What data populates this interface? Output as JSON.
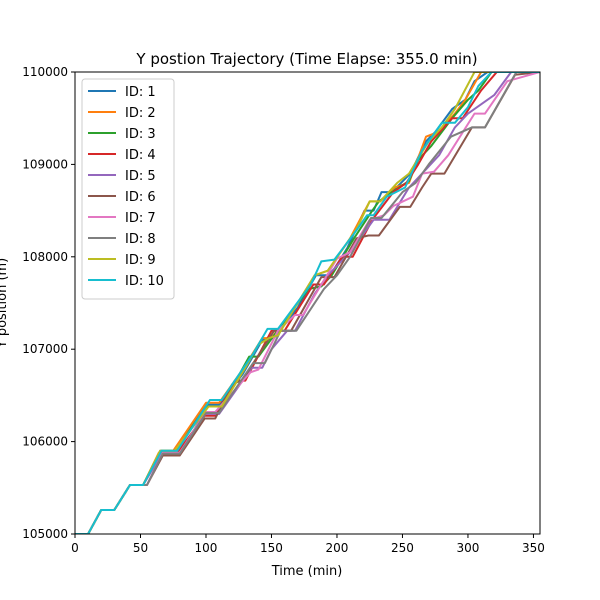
{
  "chart_data": {
    "type": "line",
    "title": "Y postion Trajectory (Time Elapse: 355.0 min)",
    "xlabel": "Time (min)",
    "ylabel": "Y position (m)",
    "xlim": [
      0,
      355
    ],
    "ylim": [
      105000,
      110000
    ],
    "xticks": [
      0,
      50,
      100,
      150,
      200,
      250,
      300,
      350
    ],
    "yticks": [
      105000,
      106000,
      107000,
      108000,
      109000,
      110000
    ],
    "xtick_labels": [
      "0",
      "50",
      "100",
      "150",
      "200",
      "250",
      "300",
      "350"
    ],
    "ytick_labels": [
      "105000",
      "106000",
      "107000",
      "108000",
      "109000",
      "110000"
    ],
    "grid": false,
    "legend": "top-left",
    "series": [
      {
        "name": "ID: 1",
        "color": "#1f77b4",
        "points": [
          [
            0,
            105000
          ],
          [
            10,
            105000
          ],
          [
            20,
            105260
          ],
          [
            30,
            105260
          ],
          [
            42,
            105530
          ],
          [
            52,
            105530
          ],
          [
            65,
            105900
          ],
          [
            76,
            105900
          ],
          [
            100,
            106400
          ],
          [
            110,
            106400
          ],
          [
            128,
            106730
          ],
          [
            143,
            107100
          ],
          [
            152,
            107120
          ],
          [
            170,
            107450
          ],
          [
            184,
            107800
          ],
          [
            195,
            107800
          ],
          [
            208,
            108100
          ],
          [
            221,
            108500
          ],
          [
            228,
            108500
          ],
          [
            234,
            108700
          ],
          [
            242,
            108700
          ],
          [
            256,
            108900
          ],
          [
            268,
            109250
          ],
          [
            275,
            109350
          ],
          [
            288,
            109600
          ],
          [
            298,
            109700
          ],
          [
            305,
            109900
          ],
          [
            315,
            110000
          ],
          [
            355,
            110000
          ]
        ]
      },
      {
        "name": "ID: 2",
        "color": "#ff7f0e",
        "points": [
          [
            0,
            105000
          ],
          [
            10,
            105000
          ],
          [
            20,
            105260
          ],
          [
            30,
            105260
          ],
          [
            42,
            105530
          ],
          [
            52,
            105530
          ],
          [
            64,
            105880
          ],
          [
            75,
            105900
          ],
          [
            100,
            106420
          ],
          [
            110,
            106420
          ],
          [
            128,
            106780
          ],
          [
            143,
            107120
          ],
          [
            150,
            107120
          ],
          [
            170,
            107500
          ],
          [
            183,
            107800
          ],
          [
            193,
            107850
          ],
          [
            210,
            108200
          ],
          [
            225,
            108600
          ],
          [
            233,
            108600
          ],
          [
            244,
            108750
          ],
          [
            255,
            108800
          ],
          [
            268,
            109300
          ],
          [
            277,
            109350
          ],
          [
            290,
            109550
          ],
          [
            298,
            109700
          ],
          [
            310,
            110000
          ],
          [
            355,
            110000
          ]
        ]
      },
      {
        "name": "ID: 3",
        "color": "#2ca02c",
        "points": [
          [
            0,
            105000
          ],
          [
            10,
            105000
          ],
          [
            20,
            105260
          ],
          [
            30,
            105260
          ],
          [
            42,
            105530
          ],
          [
            52,
            105530
          ],
          [
            66,
            105900
          ],
          [
            77,
            105900
          ],
          [
            100,
            106380
          ],
          [
            112,
            106380
          ],
          [
            133,
            106920
          ],
          [
            140,
            106920
          ],
          [
            152,
            107150
          ],
          [
            178,
            107650
          ],
          [
            188,
            107680
          ],
          [
            196,
            107800
          ],
          [
            213,
            108200
          ],
          [
            227,
            108500
          ],
          [
            232,
            108600
          ],
          [
            242,
            108700
          ],
          [
            255,
            108820
          ],
          [
            262,
            109050
          ],
          [
            272,
            109200
          ],
          [
            288,
            109500
          ],
          [
            300,
            109700
          ],
          [
            308,
            109800
          ],
          [
            318,
            110000
          ],
          [
            355,
            110000
          ]
        ]
      },
      {
        "name": "ID: 4",
        "color": "#d62728",
        "points": [
          [
            0,
            105000
          ],
          [
            10,
            105000
          ],
          [
            20,
            105260
          ],
          [
            30,
            105260
          ],
          [
            42,
            105530
          ],
          [
            52,
            105530
          ],
          [
            66,
            105880
          ],
          [
            78,
            105880
          ],
          [
            99,
            106280
          ],
          [
            107,
            106280
          ],
          [
            122,
            106660
          ],
          [
            130,
            106660
          ],
          [
            150,
            107200
          ],
          [
            160,
            107200
          ],
          [
            182,
            107700
          ],
          [
            190,
            107700
          ],
          [
            204,
            108000
          ],
          [
            212,
            108000
          ],
          [
            227,
            108400
          ],
          [
            243,
            108700
          ],
          [
            253,
            108800
          ],
          [
            262,
            109000
          ],
          [
            272,
            109250
          ],
          [
            288,
            109500
          ],
          [
            296,
            109500
          ],
          [
            310,
            109800
          ],
          [
            322,
            110000
          ],
          [
            355,
            110000
          ]
        ]
      },
      {
        "name": "ID: 5",
        "color": "#9467bd",
        "points": [
          [
            0,
            105000
          ],
          [
            10,
            105000
          ],
          [
            20,
            105260
          ],
          [
            30,
            105260
          ],
          [
            42,
            105530
          ],
          [
            52,
            105530
          ],
          [
            66,
            105860
          ],
          [
            80,
            105860
          ],
          [
            98,
            106300
          ],
          [
            110,
            106300
          ],
          [
            135,
            106800
          ],
          [
            143,
            106800
          ],
          [
            150,
            107000
          ],
          [
            162,
            107200
          ],
          [
            168,
            107200
          ],
          [
            183,
            107600
          ],
          [
            193,
            107800
          ],
          [
            210,
            108050
          ],
          [
            228,
            108400
          ],
          [
            240,
            108400
          ],
          [
            255,
            108750
          ],
          [
            265,
            108900
          ],
          [
            278,
            109100
          ],
          [
            290,
            109400
          ],
          [
            300,
            109550
          ],
          [
            320,
            109750
          ],
          [
            333,
            110000
          ],
          [
            355,
            110000
          ]
        ]
      },
      {
        "name": "ID: 6",
        "color": "#8c564b",
        "points": [
          [
            0,
            105000
          ],
          [
            10,
            105000
          ],
          [
            20,
            105260
          ],
          [
            30,
            105260
          ],
          [
            42,
            105530
          ],
          [
            55,
            105530
          ],
          [
            67,
            105850
          ],
          [
            80,
            105850
          ],
          [
            99,
            106250
          ],
          [
            107,
            106250
          ],
          [
            120,
            106620
          ],
          [
            128,
            106670
          ],
          [
            152,
            107200
          ],
          [
            165,
            107200
          ],
          [
            188,
            107780
          ],
          [
            198,
            107780
          ],
          [
            215,
            108200
          ],
          [
            224,
            108230
          ],
          [
            232,
            108230
          ],
          [
            248,
            108540
          ],
          [
            256,
            108540
          ],
          [
            265,
            108750
          ],
          [
            272,
            108900
          ],
          [
            282,
            108900
          ],
          [
            303,
            109400
          ],
          [
            313,
            109400
          ],
          [
            336,
            109970
          ],
          [
            355,
            110000
          ]
        ]
      },
      {
        "name": "ID: 7",
        "color": "#e377c2",
        "points": [
          [
            0,
            105000
          ],
          [
            10,
            105000
          ],
          [
            20,
            105260
          ],
          [
            30,
            105260
          ],
          [
            42,
            105530
          ],
          [
            55,
            105530
          ],
          [
            67,
            105880
          ],
          [
            80,
            105880
          ],
          [
            100,
            106320
          ],
          [
            107,
            106320
          ],
          [
            134,
            106750
          ],
          [
            140,
            106780
          ],
          [
            155,
            107200
          ],
          [
            168,
            107370
          ],
          [
            174,
            107370
          ],
          [
            200,
            107980
          ],
          [
            210,
            108050
          ],
          [
            225,
            108400
          ],
          [
            236,
            108450
          ],
          [
            243,
            108550
          ],
          [
            258,
            108650
          ],
          [
            265,
            108900
          ],
          [
            274,
            108920
          ],
          [
            285,
            109100
          ],
          [
            305,
            109550
          ],
          [
            313,
            109550
          ],
          [
            330,
            109900
          ],
          [
            355,
            110000
          ]
        ]
      },
      {
        "name": "ID: 8",
        "color": "#7f7f7f",
        "points": [
          [
            0,
            105000
          ],
          [
            10,
            105000
          ],
          [
            20,
            105260
          ],
          [
            30,
            105260
          ],
          [
            42,
            105530
          ],
          [
            55,
            105530
          ],
          [
            67,
            105870
          ],
          [
            80,
            105870
          ],
          [
            100,
            106310
          ],
          [
            110,
            106310
          ],
          [
            136,
            106850
          ],
          [
            145,
            106850
          ],
          [
            157,
            107200
          ],
          [
            169,
            107200
          ],
          [
            190,
            107650
          ],
          [
            200,
            107800
          ],
          [
            210,
            108000
          ],
          [
            226,
            108420
          ],
          [
            234,
            108420
          ],
          [
            250,
            108700
          ],
          [
            260,
            108800
          ],
          [
            270,
            109000
          ],
          [
            287,
            109300
          ],
          [
            303,
            109400
          ],
          [
            313,
            109400
          ],
          [
            337,
            110000
          ],
          [
            355,
            110000
          ]
        ]
      },
      {
        "name": "ID: 9",
        "color": "#bcbd22",
        "points": [
          [
            0,
            105000
          ],
          [
            10,
            105000
          ],
          [
            20,
            105260
          ],
          [
            30,
            105260
          ],
          [
            42,
            105530
          ],
          [
            52,
            105530
          ],
          [
            65,
            105900
          ],
          [
            76,
            105900
          ],
          [
            102,
            106380
          ],
          [
            112,
            106380
          ],
          [
            130,
            106800
          ],
          [
            140,
            107050
          ],
          [
            148,
            107120
          ],
          [
            155,
            107150
          ],
          [
            183,
            107800
          ],
          [
            193,
            107850
          ],
          [
            215,
            108300
          ],
          [
            225,
            108600
          ],
          [
            233,
            108600
          ],
          [
            246,
            108800
          ],
          [
            255,
            108900
          ],
          [
            270,
            109250
          ],
          [
            280,
            109400
          ],
          [
            290,
            109600
          ],
          [
            305,
            110000
          ],
          [
            355,
            110000
          ]
        ]
      },
      {
        "name": "ID: 10",
        "color": "#17becf",
        "points": [
          [
            0,
            105000
          ],
          [
            10,
            105000
          ],
          [
            20,
            105260
          ],
          [
            30,
            105260
          ],
          [
            42,
            105530
          ],
          [
            52,
            105530
          ],
          [
            66,
            105900
          ],
          [
            78,
            105900
          ],
          [
            103,
            106450
          ],
          [
            112,
            106450
          ],
          [
            136,
            106950
          ],
          [
            147,
            107220
          ],
          [
            155,
            107220
          ],
          [
            180,
            107700
          ],
          [
            188,
            107950
          ],
          [
            198,
            107970
          ],
          [
            213,
            108250
          ],
          [
            223,
            108450
          ],
          [
            228,
            108450
          ],
          [
            238,
            108650
          ],
          [
            252,
            108750
          ],
          [
            265,
            109150
          ],
          [
            280,
            109450
          ],
          [
            290,
            109450
          ],
          [
            300,
            109620
          ],
          [
            308,
            109850
          ],
          [
            318,
            110000
          ],
          [
            355,
            110000
          ]
        ]
      }
    ]
  }
}
